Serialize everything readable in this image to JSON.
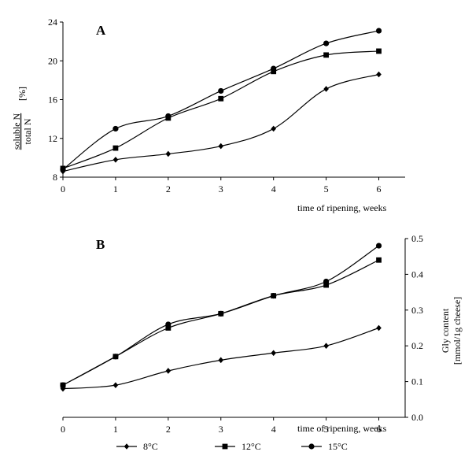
{
  "legend": [
    {
      "label": "8°C",
      "marker": "diamond"
    },
    {
      "label": "12°C",
      "marker": "square"
    },
    {
      "label": "15°C",
      "marker": "circle"
    }
  ],
  "chart_data": [
    {
      "type": "line",
      "panel_label": "A",
      "ylabel_numerator": "soluble N",
      "ylabel_denominator": "total N",
      "ylabel_unit": "[%]",
      "xlabel": "time of ripening, weeks",
      "x": [
        0,
        1,
        2,
        3,
        4,
        5,
        6
      ],
      "xlim": [
        0,
        6.5
      ],
      "ylim": [
        8,
        24
      ],
      "yticks": [
        8,
        12,
        16,
        20,
        24
      ],
      "xticks": [
        0,
        1,
        2,
        3,
        4,
        5,
        6
      ],
      "series": [
        {
          "name": "8°C",
          "marker": "diamond",
          "values": [
            8.6,
            9.8,
            10.4,
            11.2,
            13.0,
            17.1,
            18.6
          ]
        },
        {
          "name": "12°C",
          "marker": "square",
          "values": [
            8.9,
            11.0,
            14.1,
            16.1,
            18.9,
            20.6,
            21.0
          ]
        },
        {
          "name": "15°C",
          "marker": "circle",
          "values": [
            8.8,
            13.0,
            14.3,
            16.9,
            19.2,
            21.8,
            23.1
          ]
        }
      ]
    },
    {
      "type": "line",
      "panel_label": "B",
      "ylabel_line1": "Gly content",
      "ylabel_line2": "[mmol/1g cheese]",
      "xlabel": "time of ripening, weeks",
      "y_axis_side": "right",
      "x": [
        0,
        1,
        2,
        3,
        4,
        5,
        6
      ],
      "xlim": [
        0,
        6.5
      ],
      "ylim": [
        0,
        0.5
      ],
      "yticks": [
        "0.0",
        "0.1",
        "0.2",
        "0.3",
        "0.4",
        "0.5"
      ],
      "xticks": [
        0,
        1,
        2,
        3,
        4,
        5,
        6
      ],
      "series": [
        {
          "name": "8°C",
          "marker": "diamond",
          "values": [
            0.08,
            0.09,
            0.13,
            0.16,
            0.18,
            0.2,
            0.25
          ]
        },
        {
          "name": "12°C",
          "marker": "square",
          "values": [
            0.09,
            0.17,
            0.25,
            0.29,
            0.34,
            0.37,
            0.44
          ]
        },
        {
          "name": "15°C",
          "marker": "circle",
          "values": [
            0.09,
            0.17,
            0.26,
            0.29,
            0.34,
            0.38,
            0.48
          ]
        }
      ]
    }
  ]
}
